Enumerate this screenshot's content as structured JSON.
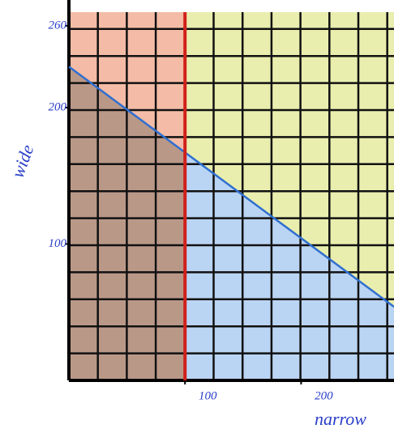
{
  "chart_data": {
    "type": "line",
    "x_label": "narrow",
    "y_label": "wide",
    "series": [
      {
        "color": "#2f6fd0",
        "x": [
          0,
          280
        ],
        "values": [
          230,
          54
        ]
      },
      {
        "color": "#d0201a",
        "x": [
          100,
          100
        ],
        "values": [
          0,
          270
        ]
      }
    ],
    "xlim": [
      0,
      280
    ],
    "ylim": [
      0,
      270
    ],
    "xticks": [
      100,
      200
    ],
    "yticks": [
      100,
      200,
      260
    ]
  }
}
